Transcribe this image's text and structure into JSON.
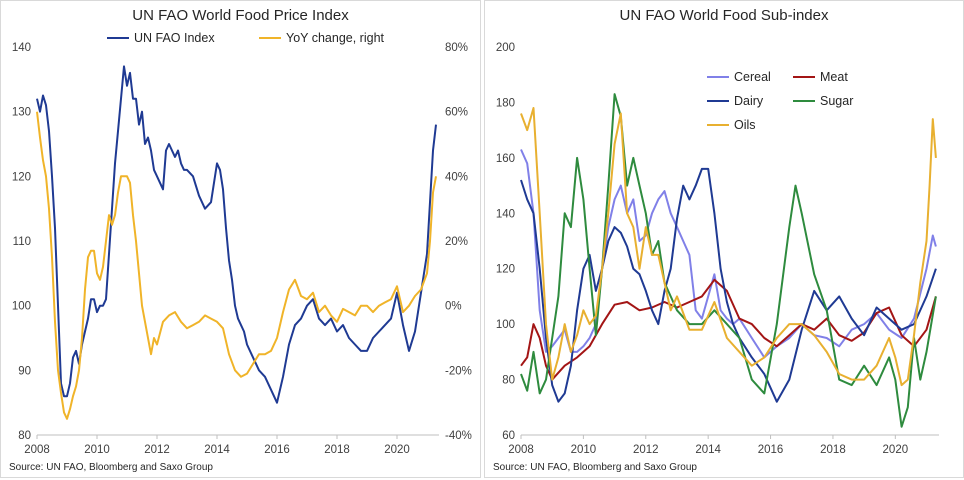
{
  "chart_data": [
    {
      "type": "line",
      "title": "UN FAO World Food Price Index",
      "source": "Source:  UN FAO, Bloomberg and Saxo Group",
      "xlabel": "",
      "ylabel": "",
      "xlim": [
        2008,
        2021.4
      ],
      "ylim": [
        80,
        140
      ],
      "y2lim": [
        -40,
        80
      ],
      "x_ticks": [
        "2008",
        "2010",
        "2012",
        "2014",
        "2016",
        "2018",
        "2020"
      ],
      "x_tick_values": [
        2008,
        2010,
        2012,
        2014,
        2016,
        2018,
        2020
      ],
      "y_ticks": [
        "80",
        "90",
        "100",
        "110",
        "120",
        "130",
        "140"
      ],
      "y_tick_values": [
        80,
        90,
        100,
        110,
        120,
        130,
        140
      ],
      "y2_ticks": [
        "-40%",
        "-20%",
        "0%",
        "20%",
        "40%",
        "60%",
        "80%"
      ],
      "y2_tick_values": [
        -40,
        -20,
        0,
        20,
        40,
        60,
        80
      ],
      "grid": false,
      "legend_position": "top",
      "series": [
        {
          "name": "UN FAO Index",
          "axis": "left",
          "color": "#1f3a93",
          "x": [
            2008.0,
            2008.1,
            2008.2,
            2008.3,
            2008.4,
            2008.5,
            2008.6,
            2008.7,
            2008.8,
            2008.9,
            2009.0,
            2009.1,
            2009.2,
            2009.3,
            2009.4,
            2009.5,
            2009.6,
            2009.7,
            2009.8,
            2009.9,
            2010.0,
            2010.1,
            2010.2,
            2010.3,
            2010.4,
            2010.5,
            2010.6,
            2010.7,
            2010.8,
            2010.9,
            2011.0,
            2011.1,
            2011.2,
            2011.3,
            2011.4,
            2011.5,
            2011.6,
            2011.7,
            2011.8,
            2011.9,
            2012.0,
            2012.1,
            2012.2,
            2012.3,
            2012.4,
            2012.5,
            2012.6,
            2012.7,
            2012.8,
            2012.9,
            2013.0,
            2013.2,
            2013.4,
            2013.6,
            2013.8,
            2014.0,
            2014.1,
            2014.2,
            2014.3,
            2014.4,
            2014.5,
            2014.6,
            2014.7,
            2014.8,
            2014.9,
            2015.0,
            2015.2,
            2015.4,
            2015.6,
            2015.8,
            2016.0,
            2016.2,
            2016.4,
            2016.6,
            2016.8,
            2017.0,
            2017.2,
            2017.4,
            2017.6,
            2017.8,
            2018.0,
            2018.2,
            2018.4,
            2018.6,
            2018.8,
            2019.0,
            2019.2,
            2019.4,
            2019.6,
            2019.8,
            2020.0,
            2020.2,
            2020.4,
            2020.6,
            2020.8,
            2021.0,
            2021.1,
            2021.2,
            2021.3
          ],
          "values": [
            132,
            130,
            132.5,
            131,
            127,
            120,
            112,
            100,
            88,
            86,
            86,
            88,
            92,
            93,
            91,
            94,
            96,
            98,
            101,
            101,
            99,
            100,
            100,
            101,
            108,
            115,
            122,
            127,
            132,
            137,
            134,
            136,
            132,
            132,
            128,
            130,
            125,
            126,
            124,
            121,
            120,
            119,
            118,
            124,
            125,
            124,
            123,
            124,
            122,
            121,
            121,
            120,
            117,
            115,
            116,
            122,
            121,
            118,
            112,
            107,
            104,
            100,
            98,
            97,
            96,
            94,
            92,
            90,
            89,
            87,
            85,
            89,
            94,
            97,
            98,
            100,
            101,
            98,
            97,
            98,
            96,
            97,
            95,
            94,
            93,
            93,
            95,
            96,
            97,
            98,
            102,
            97,
            93,
            96,
            102,
            108,
            116,
            124,
            128
          ]
        },
        {
          "name": "YoY change, right",
          "axis": "right",
          "color": "#f0b429",
          "x": [
            2008.0,
            2008.1,
            2008.2,
            2008.3,
            2008.4,
            2008.5,
            2008.6,
            2008.7,
            2008.8,
            2008.9,
            2009.0,
            2009.1,
            2009.2,
            2009.3,
            2009.4,
            2009.5,
            2009.6,
            2009.7,
            2009.8,
            2009.9,
            2010.0,
            2010.1,
            2010.2,
            2010.3,
            2010.4,
            2010.5,
            2010.6,
            2010.7,
            2010.8,
            2010.9,
            2011.0,
            2011.1,
            2011.2,
            2011.3,
            2011.4,
            2011.5,
            2011.6,
            2011.7,
            2011.8,
            2011.9,
            2012.0,
            2012.2,
            2012.4,
            2012.6,
            2012.8,
            2013.0,
            2013.2,
            2013.4,
            2013.6,
            2013.8,
            2014.0,
            2014.2,
            2014.4,
            2014.6,
            2014.8,
            2015.0,
            2015.2,
            2015.4,
            2015.6,
            2015.8,
            2016.0,
            2016.2,
            2016.4,
            2016.6,
            2016.8,
            2017.0,
            2017.2,
            2017.4,
            2017.6,
            2017.8,
            2018.0,
            2018.2,
            2018.4,
            2018.6,
            2018.8,
            2019.0,
            2019.2,
            2019.4,
            2019.6,
            2019.8,
            2020.0,
            2020.2,
            2020.4,
            2020.6,
            2020.8,
            2021.0,
            2021.1,
            2021.2,
            2021.3
          ],
          "values": [
            60,
            52,
            45,
            40,
            30,
            15,
            -5,
            -20,
            -27,
            -33,
            -35,
            -32,
            -28,
            -25,
            -20,
            -10,
            5,
            15,
            17,
            17,
            10,
            8,
            12,
            20,
            28,
            25,
            28,
            35,
            40,
            40,
            40,
            38,
            28,
            20,
            10,
            0,
            -5,
            -10,
            -15,
            -10,
            -12,
            -5,
            -3,
            -2,
            -5,
            -7,
            -6,
            -5,
            -3,
            -4,
            -5,
            -7,
            -15,
            -20,
            -22,
            -21,
            -18,
            -15,
            -15,
            -14,
            -10,
            -2,
            5,
            8,
            3,
            2,
            4,
            -2,
            0,
            -3,
            -5,
            -1,
            -2,
            -3,
            0,
            0,
            -2,
            0,
            1,
            2,
            6,
            -2,
            0,
            3,
            5,
            10,
            20,
            35,
            40
          ]
        }
      ]
    },
    {
      "type": "line",
      "title": "UN FAO World Food Sub-index",
      "source": "Source:  UN FAO, Bloomberg and Saxo Group",
      "xlabel": "",
      "ylabel": "",
      "xlim": [
        2008,
        2021.4
      ],
      "ylim": [
        60,
        200
      ],
      "x_ticks": [
        "2008",
        "2010",
        "2012",
        "2014",
        "2016",
        "2018",
        "2020"
      ],
      "x_tick_values": [
        2008,
        2010,
        2012,
        2014,
        2016,
        2018,
        2020
      ],
      "y_ticks": [
        "60",
        "80",
        "100",
        "120",
        "140",
        "160",
        "180",
        "200"
      ],
      "y_tick_values": [
        60,
        80,
        100,
        120,
        140,
        160,
        180,
        200
      ],
      "grid": false,
      "legend_position": "top-center",
      "series": [
        {
          "name": "Cereal",
          "color": "#8080e8",
          "x": [
            2008.0,
            2008.2,
            2008.4,
            2008.6,
            2008.8,
            2009.0,
            2009.2,
            2009.4,
            2009.6,
            2009.8,
            2010.0,
            2010.2,
            2010.4,
            2010.6,
            2010.8,
            2011.0,
            2011.2,
            2011.4,
            2011.6,
            2011.8,
            2012.0,
            2012.2,
            2012.4,
            2012.6,
            2012.8,
            2013.0,
            2013.2,
            2013.4,
            2013.6,
            2013.8,
            2014.0,
            2014.2,
            2014.4,
            2014.6,
            2014.8,
            2015.0,
            2015.4,
            2015.8,
            2016.2,
            2016.6,
            2017.0,
            2017.4,
            2017.8,
            2018.2,
            2018.6,
            2019.0,
            2019.4,
            2019.8,
            2020.2,
            2020.6,
            2021.0,
            2021.2,
            2021.3
          ],
          "values": [
            163,
            158,
            140,
            105,
            90,
            92,
            95,
            98,
            90,
            90,
            92,
            95,
            100,
            120,
            135,
            145,
            150,
            140,
            145,
            130,
            132,
            140,
            145,
            148,
            140,
            135,
            130,
            125,
            105,
            102,
            110,
            118,
            105,
            102,
            100,
            102,
            95,
            88,
            92,
            95,
            100,
            96,
            95,
            92,
            98,
            100,
            104,
            98,
            95,
            102,
            120,
            132,
            128
          ]
        },
        {
          "name": "Meat",
          "color": "#a31515",
          "x": [
            2008.0,
            2008.2,
            2008.4,
            2008.6,
            2008.8,
            2009.0,
            2009.4,
            2009.8,
            2010.2,
            2010.6,
            2011.0,
            2011.4,
            2011.8,
            2012.2,
            2012.6,
            2013.0,
            2013.4,
            2013.8,
            2014.2,
            2014.6,
            2015.0,
            2015.4,
            2015.8,
            2016.2,
            2016.6,
            2017.0,
            2017.4,
            2017.8,
            2018.2,
            2018.6,
            2019.0,
            2019.4,
            2019.8,
            2020.2,
            2020.6,
            2021.0,
            2021.3
          ],
          "values": [
            85,
            88,
            100,
            95,
            85,
            80,
            85,
            88,
            92,
            100,
            107,
            108,
            105,
            106,
            108,
            106,
            108,
            110,
            116,
            112,
            102,
            100,
            95,
            92,
            96,
            100,
            98,
            102,
            96,
            94,
            97,
            104,
            106,
            96,
            92,
            98,
            110
          ]
        },
        {
          "name": "Dairy",
          "color": "#1f3a93",
          "x": [
            2008.0,
            2008.2,
            2008.4,
            2008.6,
            2008.8,
            2009.0,
            2009.2,
            2009.4,
            2009.6,
            2009.8,
            2010.0,
            2010.2,
            2010.4,
            2010.6,
            2010.8,
            2011.0,
            2011.2,
            2011.4,
            2011.6,
            2011.8,
            2012.0,
            2012.2,
            2012.4,
            2012.6,
            2012.8,
            2013.0,
            2013.2,
            2013.4,
            2013.6,
            2013.8,
            2014.0,
            2014.2,
            2014.4,
            2014.6,
            2014.8,
            2015.0,
            2015.4,
            2015.8,
            2016.2,
            2016.6,
            2017.0,
            2017.4,
            2017.8,
            2018.2,
            2018.6,
            2019.0,
            2019.4,
            2019.8,
            2020.2,
            2020.6,
            2021.0,
            2021.3
          ],
          "values": [
            152,
            145,
            140,
            120,
            95,
            78,
            72,
            75,
            85,
            105,
            120,
            125,
            112,
            120,
            130,
            135,
            133,
            128,
            120,
            118,
            112,
            105,
            100,
            112,
            120,
            138,
            150,
            145,
            150,
            156,
            156,
            140,
            120,
            108,
            100,
            95,
            88,
            82,
            72,
            80,
            98,
            112,
            105,
            110,
            102,
            96,
            106,
            102,
            98,
            100,
            110,
            120
          ]
        },
        {
          "name": "Sugar",
          "color": "#2e8b3e",
          "x": [
            2008.0,
            2008.2,
            2008.4,
            2008.6,
            2008.8,
            2009.0,
            2009.2,
            2009.4,
            2009.6,
            2009.8,
            2010.0,
            2010.2,
            2010.4,
            2010.6,
            2010.8,
            2011.0,
            2011.2,
            2011.4,
            2011.6,
            2011.8,
            2012.0,
            2012.2,
            2012.4,
            2012.6,
            2012.8,
            2013.0,
            2013.4,
            2013.8,
            2014.2,
            2014.6,
            2015.0,
            2015.4,
            2015.8,
            2016.2,
            2016.6,
            2016.8,
            2017.0,
            2017.4,
            2017.8,
            2018.2,
            2018.6,
            2019.0,
            2019.4,
            2019.8,
            2020.0,
            2020.2,
            2020.4,
            2020.6,
            2020.8,
            2021.0,
            2021.3
          ],
          "values": [
            82,
            76,
            90,
            75,
            80,
            95,
            110,
            140,
            135,
            160,
            145,
            120,
            96,
            120,
            150,
            183,
            175,
            150,
            160,
            150,
            140,
            125,
            130,
            115,
            110,
            105,
            100,
            100,
            105,
            100,
            95,
            80,
            75,
            100,
            135,
            150,
            140,
            118,
            105,
            80,
            78,
            85,
            78,
            88,
            80,
            63,
            70,
            95,
            80,
            90,
            110
          ]
        },
        {
          "name": "Oils",
          "color": "#e8b030",
          "x": [
            2008.0,
            2008.2,
            2008.4,
            2008.6,
            2008.8,
            2009.0,
            2009.2,
            2009.4,
            2009.6,
            2009.8,
            2010.0,
            2010.2,
            2010.4,
            2010.6,
            2010.8,
            2011.0,
            2011.2,
            2011.4,
            2011.6,
            2011.8,
            2012.0,
            2012.2,
            2012.4,
            2012.6,
            2012.8,
            2013.0,
            2013.4,
            2013.8,
            2014.2,
            2014.6,
            2015.0,
            2015.4,
            2015.8,
            2016.2,
            2016.6,
            2017.0,
            2017.4,
            2017.8,
            2018.2,
            2018.6,
            2019.0,
            2019.4,
            2019.8,
            2020.0,
            2020.2,
            2020.4,
            2020.6,
            2020.8,
            2021.0,
            2021.1,
            2021.2,
            2021.3
          ],
          "values": [
            176,
            170,
            178,
            140,
            100,
            80,
            88,
            100,
            90,
            96,
            105,
            100,
            103,
            120,
            140,
            165,
            176,
            140,
            135,
            120,
            135,
            125,
            125,
            115,
            105,
            110,
            98,
            98,
            108,
            95,
            90,
            85,
            88,
            95,
            100,
            100,
            96,
            90,
            82,
            80,
            80,
            85,
            95,
            88,
            78,
            80,
            96,
            115,
            130,
            150,
            174,
            160
          ]
        }
      ]
    }
  ],
  "left_panel": {
    "title": "UN FAO World Food Price Index",
    "source": "Source:  UN FAO, Bloomberg and Saxo Group",
    "legend": [
      "UN FAO Index",
      "YoY change, right"
    ]
  },
  "right_panel": {
    "title": "UN FAO World Food Sub-index",
    "source": "Source:  UN FAO, Bloomberg and Saxo Group",
    "legend": [
      "Cereal",
      "Meat",
      "Dairy",
      "Sugar",
      "Oils"
    ]
  }
}
